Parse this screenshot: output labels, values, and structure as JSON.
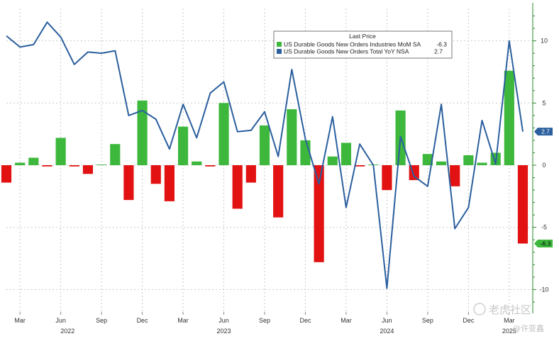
{
  "chart_data": {
    "type": "bar",
    "title": "",
    "xlabel": "",
    "ylabel": "",
    "ylim": [
      -11.8,
      12.6
    ],
    "yticks": [
      10,
      5,
      0,
      -5,
      -10
    ],
    "legend": {
      "title": "Last Price",
      "placement": "top-right",
      "entries": [
        {
          "label": "US Durable Goods New Orders Industries MoM SA",
          "value": "-6.3",
          "color": "#3db83d"
        },
        {
          "label": "US Durable Goods New Orders Total YoY NSA",
          "value": "2.7",
          "color": "#2b5f9e"
        }
      ]
    },
    "x_month_labels": [
      {
        "label": "Mar",
        "index": 1
      },
      {
        "label": "Jun",
        "index": 4
      },
      {
        "label": "Sep",
        "index": 7
      },
      {
        "label": "Dec",
        "index": 10
      },
      {
        "label": "Mar",
        "index": 13
      },
      {
        "label": "Jun",
        "index": 16
      },
      {
        "label": "Sep",
        "index": 19
      },
      {
        "label": "Dec",
        "index": 22
      },
      {
        "label": "Mar",
        "index": 25
      },
      {
        "label": "Jun",
        "index": 28
      },
      {
        "label": "Sep",
        "index": 31
      },
      {
        "label": "Dec",
        "index": 34
      },
      {
        "label": "Mar",
        "index": 37
      }
    ],
    "x_year_labels": [
      {
        "label": "2022",
        "index": 4.5
      },
      {
        "label": "2023",
        "index": 16
      },
      {
        "label": "2024",
        "index": 28
      },
      {
        "label": "2025",
        "index": 37
      }
    ],
    "months": [
      "Feb 2022",
      "Mar 2022",
      "Apr 2022",
      "May 2022",
      "Jun 2022",
      "Jul 2022",
      "Aug 2022",
      "Sep 2022",
      "Oct 2022",
      "Nov 2022",
      "Dec 2022",
      "Jan 2023",
      "Feb 2023",
      "Mar 2023",
      "Apr 2023",
      "May 2023",
      "Jun 2023",
      "Jul 2023",
      "Aug 2023",
      "Sep 2023",
      "Oct 2023",
      "Nov 2023",
      "Dec 2023",
      "Jan 2024",
      "Feb 2024",
      "Mar 2024",
      "Apr 2024",
      "May 2024",
      "Jun 2024",
      "Jul 2024",
      "Aug 2024",
      "Sep 2024",
      "Oct 2024",
      "Nov 2024",
      "Dec 2024",
      "Jan 2025",
      "Feb 2025",
      "Mar 2025",
      "Apr 2025"
    ],
    "series": [
      {
        "name": "US Durable Goods New Orders Industries MoM SA",
        "type": "bar",
        "positive_color": "#3db83d",
        "negative_color": "#e31212",
        "values": [
          -1.4,
          0.2,
          0.6,
          -0.1,
          2.2,
          -0.1,
          -0.7,
          0.05,
          1.7,
          -2.8,
          5.2,
          -1.5,
          -2.9,
          3.1,
          0.3,
          -0.1,
          5.0,
          -3.5,
          -1.4,
          3.2,
          -4.2,
          4.5,
          2.0,
          -7.8,
          0.7,
          1.8,
          -0.1,
          0.05,
          -2.0,
          4.4,
          -1.2,
          0.9,
          0.3,
          -1.7,
          0.8,
          0.2,
          1.0,
          7.6,
          -6.3
        ]
      },
      {
        "name": "US Durable Goods New Orders Total YoY NSA",
        "type": "line",
        "color": "#2b5f9e",
        "values": [
          10.4,
          9.5,
          9.7,
          11.5,
          10.3,
          8.1,
          9.1,
          9.0,
          9.2,
          4.0,
          4.4,
          3.7,
          1.3,
          4.9,
          2.2,
          5.8,
          6.7,
          2.7,
          2.8,
          4.3,
          0.7,
          7.7,
          2.1,
          -1.5,
          3.9,
          -3.4,
          1.7,
          0.0,
          -9.9,
          2.3,
          -0.9,
          -1.7,
          4.9,
          -5.1,
          -3.4,
          3.6,
          0.1,
          10.0,
          2.7
        ]
      }
    ],
    "last_value_tags": [
      {
        "label": "2.7",
        "value": 2.7,
        "color": "#2b5f9e"
      },
      {
        "label": "-6.3",
        "value": -6.3,
        "color": "#3db83d"
      }
    ]
  },
  "watermark": {
    "main": "老虎社区",
    "sub": "@许亚鑫"
  }
}
